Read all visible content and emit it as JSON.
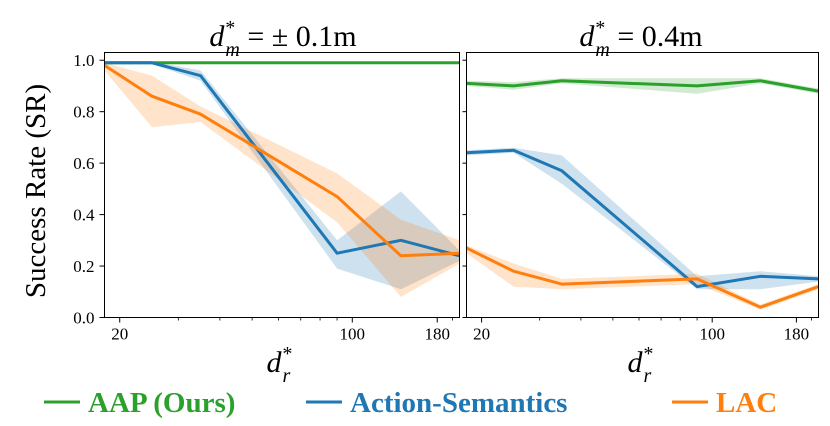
{
  "chart_data": [
    {
      "type": "line",
      "title": "d_m^* = ± 0.1m",
      "title_main": "d",
      "title_sub": "m",
      "title_sup": "*",
      "title_rest": " = ± 0.1m",
      "xlabel": "d_r^*",
      "ylabel": "Success Rate (SR)",
      "xscale": "log",
      "xlim": [
        18,
        210
      ],
      "ylim": [
        0.0,
        1.03
      ],
      "xticks": [
        20,
        100,
        180
      ],
      "xtick_labels": [
        "20",
        "100",
        "180"
      ],
      "yticks": [
        0.0,
        0.2,
        0.4,
        0.6,
        0.8,
        1.0
      ],
      "ytick_labels": [
        "0.0",
        "0.2",
        "0.4",
        "0.6",
        "0.8",
        "1.0"
      ],
      "series": [
        {
          "name": "AAP (Ours)",
          "color": "#2ca02c",
          "x": [
            18,
            25,
            35,
            90,
            140,
            210
          ],
          "y": [
            0.99,
            0.99,
            0.99,
            0.99,
            0.99,
            0.99
          ],
          "lower": [
            0.985,
            0.985,
            0.985,
            0.985,
            0.985,
            0.985
          ],
          "upper": [
            0.995,
            0.995,
            0.995,
            0.995,
            0.995,
            0.995
          ]
        },
        {
          "name": "Action-Semantics",
          "color": "#1f77b4",
          "x": [
            18,
            25,
            35,
            90,
            140,
            210
          ],
          "y": [
            0.99,
            0.99,
            0.94,
            0.25,
            0.3,
            0.24
          ],
          "lower": [
            0.985,
            0.985,
            0.92,
            0.19,
            0.11,
            0.22
          ],
          "upper": [
            0.995,
            0.995,
            0.96,
            0.3,
            0.49,
            0.26
          ]
        },
        {
          "name": "LAC",
          "color": "#ff7f0e",
          "x": [
            18,
            25,
            35,
            90,
            140,
            210
          ],
          "y": [
            0.98,
            0.86,
            0.79,
            0.47,
            0.24,
            0.25
          ],
          "lower": [
            0.96,
            0.74,
            0.76,
            0.37,
            0.08,
            0.21
          ],
          "upper": [
            0.99,
            0.94,
            0.82,
            0.56,
            0.38,
            0.3
          ]
        }
      ]
    },
    {
      "type": "line",
      "title": "d_m^* = 0.4m",
      "title_main": "d",
      "title_sub": "m",
      "title_sup": "*",
      "title_rest": " = 0.4m",
      "xlabel": "d_r^*",
      "xscale": "log",
      "xlim": [
        18,
        210
      ],
      "ylim": [
        0.0,
        1.03
      ],
      "xticks": [
        20,
        100,
        180
      ],
      "xtick_labels": [
        "20",
        "100",
        "180"
      ],
      "series": [
        {
          "name": "AAP (Ours)",
          "color": "#2ca02c",
          "x": [
            18,
            25,
            35,
            90,
            140,
            210
          ],
          "y": [
            0.91,
            0.9,
            0.92,
            0.9,
            0.92,
            0.88
          ],
          "lower": [
            0.9,
            0.885,
            0.91,
            0.87,
            0.91,
            0.87
          ],
          "upper": [
            0.92,
            0.915,
            0.93,
            0.93,
            0.93,
            0.89
          ]
        },
        {
          "name": "Action-Semantics",
          "color": "#1f77b4",
          "x": [
            18,
            25,
            35,
            90,
            140,
            210
          ],
          "y": [
            0.64,
            0.65,
            0.57,
            0.12,
            0.16,
            0.15
          ],
          "lower": [
            0.63,
            0.64,
            0.52,
            0.11,
            0.11,
            0.14
          ],
          "upper": [
            0.65,
            0.66,
            0.63,
            0.16,
            0.18,
            0.16
          ]
        },
        {
          "name": "LAC",
          "color": "#ff7f0e",
          "x": [
            18,
            25,
            35,
            90,
            140,
            210
          ],
          "y": [
            0.27,
            0.18,
            0.13,
            0.15,
            0.04,
            0.12
          ],
          "lower": [
            0.25,
            0.12,
            0.11,
            0.13,
            0.03,
            0.11
          ],
          "upper": [
            0.28,
            0.21,
            0.15,
            0.17,
            0.05,
            0.13
          ]
        }
      ]
    }
  ],
  "legend": {
    "placement": "bottom",
    "items": [
      {
        "label": "AAP (Ours)",
        "color": "#2ca02c"
      },
      {
        "label": "Action-Semantics",
        "color": "#1f77b4"
      },
      {
        "label": "LAC",
        "color": "#ff7f0e"
      }
    ]
  }
}
